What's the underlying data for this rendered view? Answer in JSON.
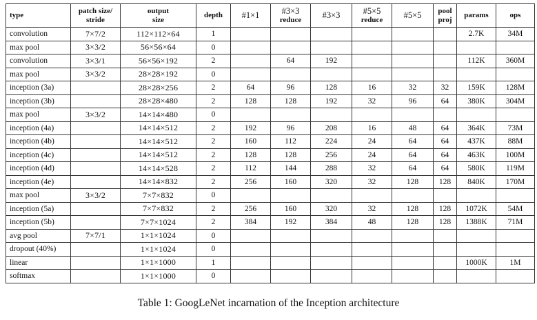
{
  "table": {
    "headers": [
      {
        "l1": "type",
        "l2": "",
        "style": "bold"
      },
      {
        "l1": "patch size/",
        "l2": "stride",
        "style": "bold"
      },
      {
        "l1": "output",
        "l2": "size",
        "style": "bold"
      },
      {
        "l1": "depth",
        "l2": "",
        "style": "bold"
      },
      {
        "l1": "#1×1",
        "l2": "",
        "style": "math"
      },
      {
        "l1": "#3×3",
        "l2": "reduce",
        "style": "math"
      },
      {
        "l1": "#3×3",
        "l2": "",
        "style": "math"
      },
      {
        "l1": "#5×5",
        "l2": "reduce",
        "style": "math"
      },
      {
        "l1": "#5×5",
        "l2": "",
        "style": "math"
      },
      {
        "l1": "pool",
        "l2": "proj",
        "style": "bold"
      },
      {
        "l1": "params",
        "l2": "",
        "style": "bold"
      },
      {
        "l1": "ops",
        "l2": "",
        "style": "bold"
      }
    ],
    "rows": [
      [
        "convolution",
        "7×7/2",
        "112×112×64",
        "1",
        "",
        "",
        "",
        "",
        "",
        "",
        "2.7K",
        "34M"
      ],
      [
        "max pool",
        "3×3/2",
        "56×56×64",
        "0",
        "",
        "",
        "",
        "",
        "",
        "",
        "",
        ""
      ],
      [
        "convolution",
        "3×3/1",
        "56×56×192",
        "2",
        "",
        "64",
        "192",
        "",
        "",
        "",
        "112K",
        "360M"
      ],
      [
        "max pool",
        "3×3/2",
        "28×28×192",
        "0",
        "",
        "",
        "",
        "",
        "",
        "",
        "",
        ""
      ],
      [
        "inception (3a)",
        "",
        "28×28×256",
        "2",
        "64",
        "96",
        "128",
        "16",
        "32",
        "32",
        "159K",
        "128M"
      ],
      [
        "inception (3b)",
        "",
        "28×28×480",
        "2",
        "128",
        "128",
        "192",
        "32",
        "96",
        "64",
        "380K",
        "304M"
      ],
      [
        "max pool",
        "3×3/2",
        "14×14×480",
        "0",
        "",
        "",
        "",
        "",
        "",
        "",
        "",
        ""
      ],
      [
        "inception (4a)",
        "",
        "14×14×512",
        "2",
        "192",
        "96",
        "208",
        "16",
        "48",
        "64",
        "364K",
        "73M"
      ],
      [
        "inception (4b)",
        "",
        "14×14×512",
        "2",
        "160",
        "112",
        "224",
        "24",
        "64",
        "64",
        "437K",
        "88M"
      ],
      [
        "inception (4c)",
        "",
        "14×14×512",
        "2",
        "128",
        "128",
        "256",
        "24",
        "64",
        "64",
        "463K",
        "100M"
      ],
      [
        "inception (4d)",
        "",
        "14×14×528",
        "2",
        "112",
        "144",
        "288",
        "32",
        "64",
        "64",
        "580K",
        "119M"
      ],
      [
        "inception (4e)",
        "",
        "14×14×832",
        "2",
        "256",
        "160",
        "320",
        "32",
        "128",
        "128",
        "840K",
        "170M"
      ],
      [
        "max pool",
        "3×3/2",
        "7×7×832",
        "0",
        "",
        "",
        "",
        "",
        "",
        "",
        "",
        ""
      ],
      [
        "inception (5a)",
        "",
        "7×7×832",
        "2",
        "256",
        "160",
        "320",
        "32",
        "128",
        "128",
        "1072K",
        "54M"
      ],
      [
        "inception (5b)",
        "",
        "7×7×1024",
        "2",
        "384",
        "192",
        "384",
        "48",
        "128",
        "128",
        "1388K",
        "71M"
      ],
      [
        "avg pool",
        "7×7/1",
        "1×1×1024",
        "0",
        "",
        "",
        "",
        "",
        "",
        "",
        "",
        ""
      ],
      [
        "dropout (40%)",
        "",
        "1×1×1024",
        "0",
        "",
        "",
        "",
        "",
        "",
        "",
        "",
        ""
      ],
      [
        "linear",
        "",
        "1×1×1000",
        "1",
        "",
        "",
        "",
        "",
        "",
        "",
        "1000K",
        "1M"
      ],
      [
        "softmax",
        "",
        "1×1×1000",
        "0",
        "",
        "",
        "",
        "",
        "",
        "",
        "",
        ""
      ]
    ]
  },
  "caption": "Table 1: GoogLeNet incarnation of the Inception architecture"
}
